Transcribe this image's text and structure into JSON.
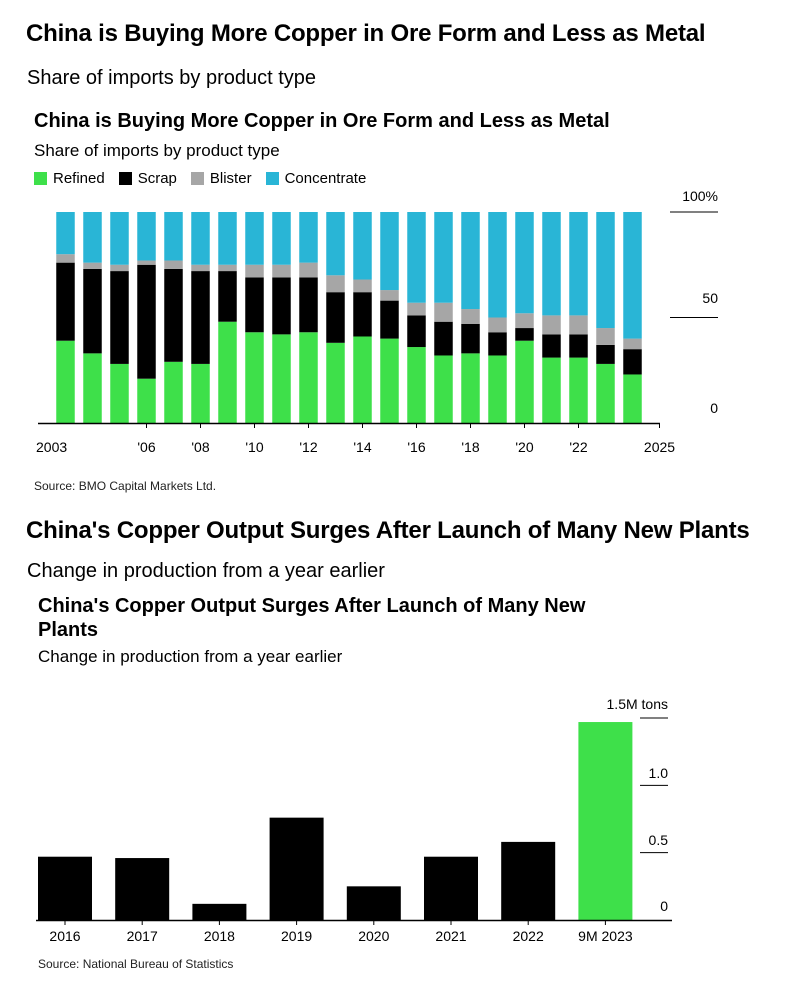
{
  "header1": {
    "title": "China is Buying More Copper in Ore Form and Less as Metal",
    "subtitle": "Share of imports by product type"
  },
  "header2": {
    "title": "China's Copper Output Surges After Launch of Many New Plants",
    "subtitle": "Change in production from a year earlier"
  },
  "colors": {
    "refined": "#3ee04a",
    "scrap": "#000000",
    "blister": "#a6a6a6",
    "concentrate": "#29b5d6",
    "gridline": "#000000"
  },
  "chart_data": [
    {
      "type": "bar",
      "stacked": true,
      "title": "China is Buying More Copper in Ore Form and Less as Metal",
      "subtitle": "Share of imports by product type",
      "source": "Source: BMO Capital Markets Ltd.",
      "legend": [
        "Refined",
        "Scrap",
        "Blister",
        "Concentrate"
      ],
      "legend_position": "top-left",
      "categories": [
        "2003",
        "2004",
        "2005",
        "2006",
        "2007",
        "2008",
        "2009",
        "2010",
        "2011",
        "2012",
        "2013",
        "2014",
        "2015",
        "2016",
        "2017",
        "2018",
        "2019",
        "2020",
        "2021",
        "2022",
        "2023",
        "2024"
      ],
      "x_tick_labels": [
        "2003",
        "'06",
        "'08",
        "'10",
        "'12",
        "'14",
        "'16",
        "'18",
        "'20",
        "'22",
        "2025"
      ],
      "y_tick_labels": [
        "100%",
        "50",
        "0"
      ],
      "ylim": [
        0,
        100
      ],
      "series": [
        {
          "name": "Refined",
          "values": [
            39,
            33,
            28,
            21,
            29,
            28,
            48,
            43,
            42,
            43,
            38,
            41,
            40,
            36,
            32,
            33,
            32,
            39,
            31,
            31,
            28,
            23
          ]
        },
        {
          "name": "Scrap",
          "values": [
            37,
            40,
            44,
            54,
            44,
            44,
            24,
            26,
            27,
            26,
            24,
            21,
            18,
            15,
            16,
            14,
            11,
            6,
            11,
            11,
            9,
            12
          ]
        },
        {
          "name": "Blister",
          "values": [
            4,
            3,
            3,
            2,
            4,
            3,
            3,
            6,
            6,
            7,
            8,
            6,
            5,
            6,
            9,
            7,
            7,
            7,
            9,
            9,
            8,
            5
          ]
        },
        {
          "name": "Concentrate",
          "values": [
            20,
            24,
            25,
            23,
            23,
            25,
            25,
            25,
            25,
            24,
            30,
            32,
            37,
            43,
            43,
            46,
            50,
            48,
            49,
            49,
            55,
            60
          ]
        }
      ],
      "grid": "horizontal"
    },
    {
      "type": "bar",
      "title": "China's Copper Output Surges After Launch of Many New Plants",
      "subtitle": "Change in production from a year earlier",
      "source": "Source: National Bureau of Statistics",
      "categories": [
        "2016",
        "2017",
        "2018",
        "2019",
        "2020",
        "2021",
        "2022",
        "9M 2023"
      ],
      "values": [
        0.47,
        0.46,
        0.12,
        0.76,
        0.25,
        0.47,
        0.58,
        1.47
      ],
      "highlight": "9M 2023",
      "y_tick_labels": [
        "1.5M tons",
        "1.0",
        "0.5",
        "0"
      ],
      "ylim": [
        0,
        1.5
      ],
      "grid": "horizontal"
    }
  ]
}
